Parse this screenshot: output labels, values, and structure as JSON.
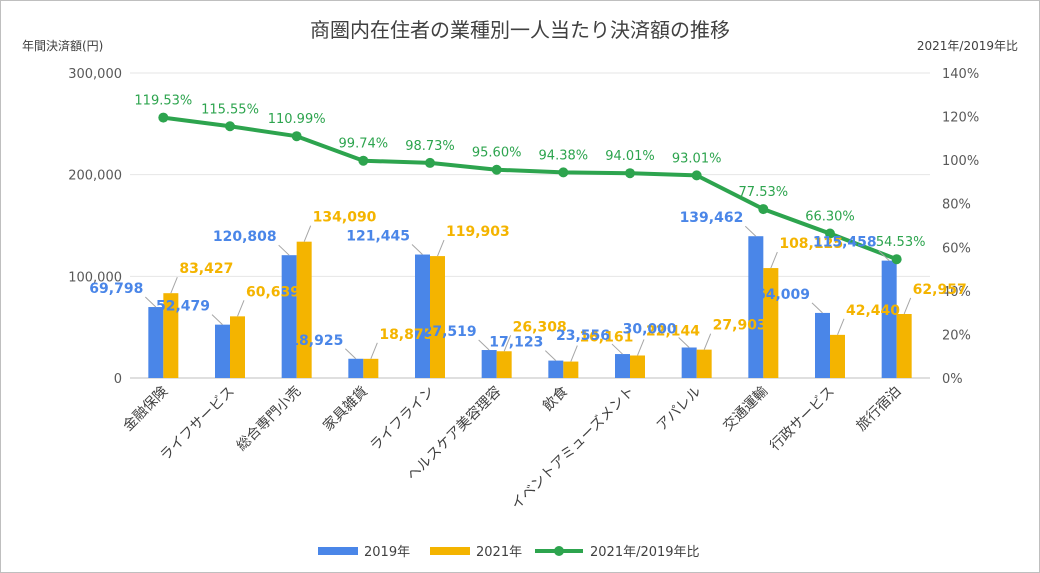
{
  "chart_data": {
    "type": "bar+line",
    "title": "商圏内在住者の業種別一人当たり決済額の推移",
    "ylabel_left": "年間決済額(円)",
    "ylabel_right": "2021年/2019年比",
    "y_left_ticks": [
      "0",
      "100,000",
      "200,000",
      "300,000"
    ],
    "y_left_range": [
      0,
      300000
    ],
    "y_right_ticks": [
      "0%",
      "20%",
      "40%",
      "60%",
      "80%",
      "100%",
      "120%",
      "140%"
    ],
    "y_right_range": [
      0,
      140
    ],
    "categories": [
      "金融保険",
      "ライフサービス",
      "総合専門小売",
      "家具雑貨",
      "ライフライン",
      "ヘルスケア美容理容",
      "飲食",
      "イベントアミューズメント",
      "アパレル",
      "交通運輸",
      "行政サービス",
      "旅行宿泊"
    ],
    "series": [
      {
        "name": "2019年",
        "color": "#4a86e8",
        "values": [
          69798,
          52479,
          120808,
          18925,
          121445,
          27519,
          17123,
          23556,
          30000,
          139462,
          64009,
          115458
        ],
        "labels": [
          "69,798",
          "52,479",
          "120,808",
          "18,925",
          "121,445",
          "27,519",
          "17,123",
          "23,556",
          "30,000",
          "139,462",
          "64,009",
          "115,458"
        ]
      },
      {
        "name": "2021年",
        "color": "#f4b400",
        "values": [
          83427,
          60639,
          134090,
          18875,
          119903,
          26308,
          16161,
          22144,
          27903,
          108125,
          42440,
          62957
        ],
        "labels": [
          "83,427",
          "60,639",
          "134,090",
          "18,875",
          "119,903",
          "26,308",
          "16,161",
          "22,144",
          "27,903",
          "108,125",
          "42,440",
          "62,957"
        ]
      },
      {
        "name": "2021年/2019年比",
        "color": "#2da44e",
        "values": [
          119.53,
          115.55,
          110.99,
          99.74,
          98.73,
          95.6,
          94.38,
          94.01,
          93.01,
          77.53,
          66.3,
          54.53
        ],
        "labels": [
          "119.53%",
          "115.55%",
          "110.99%",
          "99.74%",
          "98.73%",
          "95.60%",
          "94.38%",
          "94.01%",
          "93.01%",
          "77.53%",
          "66.30%",
          "54.53%"
        ]
      }
    ],
    "legend_position": "bottom"
  }
}
